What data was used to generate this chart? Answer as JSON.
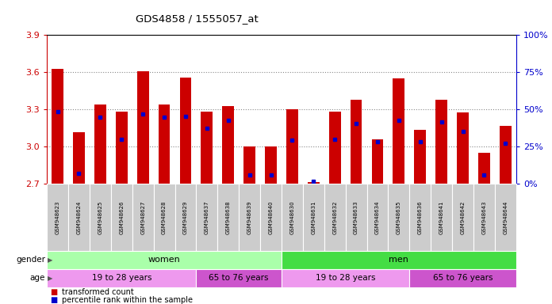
{
  "title": "GDS4858 / 1555057_at",
  "samples": [
    "GSM948623",
    "GSM948624",
    "GSM948625",
    "GSM948626",
    "GSM948627",
    "GSM948628",
    "GSM948629",
    "GSM948637",
    "GSM948638",
    "GSM948639",
    "GSM948640",
    "GSM948630",
    "GSM948631",
    "GSM948632",
    "GSM948633",
    "GSM948634",
    "GSM948635",
    "GSM948636",
    "GSM948641",
    "GSM948642",
    "GSM948643",
    "GSM948644"
  ],
  "bar_values": [
    3.625,
    3.115,
    3.34,
    3.285,
    3.605,
    3.34,
    3.555,
    3.285,
    3.325,
    3.0,
    3.0,
    3.3,
    2.715,
    3.28,
    3.375,
    3.06,
    3.55,
    3.135,
    3.375,
    3.275,
    2.95,
    3.17
  ],
  "percentile_values": [
    3.285,
    2.785,
    3.235,
    3.06,
    3.265,
    3.24,
    3.245,
    3.15,
    3.215,
    2.775,
    2.775,
    3.055,
    2.72,
    3.06,
    3.185,
    3.04,
    3.21,
    3.04,
    3.2,
    3.12,
    2.77,
    3.03
  ],
  "baseline": 2.7,
  "ylim_left": [
    2.7,
    3.9
  ],
  "ylim_right": [
    0,
    100
  ],
  "yticks_left": [
    2.7,
    3.0,
    3.3,
    3.6,
    3.9
  ],
  "yticks_right": [
    0,
    25,
    50,
    75,
    100
  ],
  "bar_color": "#cc0000",
  "dot_color": "#0000cc",
  "grid_color": "#888888",
  "bg_color": "#ffffff",
  "left_axis_color": "#cc0000",
  "right_axis_color": "#0000cc",
  "tick_label_bg": "#cccccc",
  "gender_groups": [
    {
      "label": "women",
      "start": 0,
      "end": 11,
      "color": "#aaffaa"
    },
    {
      "label": "men",
      "start": 11,
      "end": 22,
      "color": "#44dd44"
    }
  ],
  "age_groups": [
    {
      "label": "19 to 28 years",
      "start": 0,
      "end": 7,
      "color": "#ee99ee"
    },
    {
      "label": "65 to 76 years",
      "start": 7,
      "end": 11,
      "color": "#cc55cc"
    },
    {
      "label": "19 to 28 years",
      "start": 11,
      "end": 17,
      "color": "#ee99ee"
    },
    {
      "label": "65 to 76 years",
      "start": 17,
      "end": 22,
      "color": "#cc55cc"
    }
  ]
}
